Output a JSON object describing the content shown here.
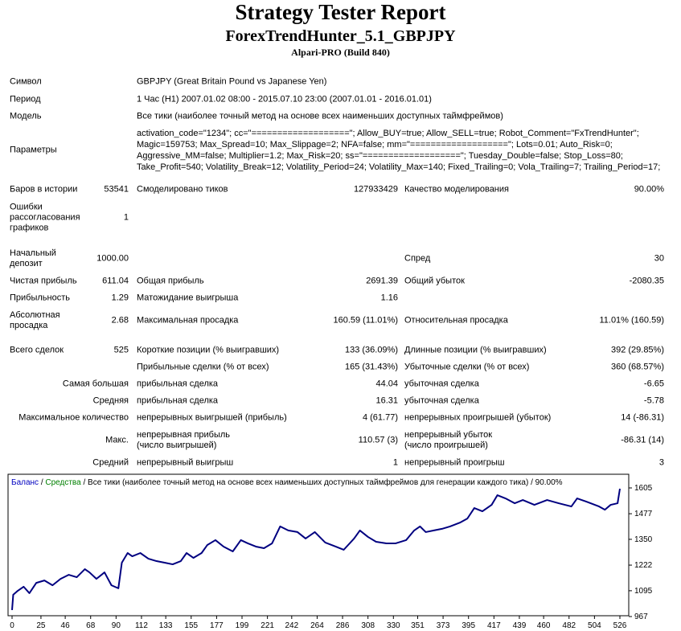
{
  "header": {
    "title": "Strategy Tester Report",
    "subtitle": "ForexTrendHunter_5.1_GBPJPY",
    "build": "Alpari-PRO (Build 840)"
  },
  "table": {
    "rows": [
      [
        "Символ",
        "GBPJPY (Great Britain Pound vs Japanese Yen)"
      ],
      [
        "Период",
        "1 Час (H1) 2007.01.02 08:00 - 2015.07.10 23:00 (2007.01.01 - 2016.01.01)"
      ],
      [
        "Модель",
        "Все тики (наиболее точный метод на основе всех наименьших доступных таймфреймов)"
      ],
      [
        "Параметры",
        "activation_code=\"1234\"; cc=\"===================\"; Allow_BUY=true; Allow_SELL=true; Robot_Comment=\"FxTrendHunter\";",
        "Magic=159753; Max_Spread=10; Max_Slippage=2; NFA=false; mm=\"===================\"; Lots=0.01; Auto_Risk=0;",
        "Aggressive_MM=false; Multiplier=1.2; Max_Risk=20; ss=\"===================\"; Tuesday_Double=false; Stop_Loss=80;",
        "Take_Profit=540; Volatility_Break=12; Volatility_Period=24; Volatility_Max=140; Fixed_Trailing=0; Vola_Trailing=7; Trailing_Period=17;"
      ],
      [
        "Баров в истории",
        "53541",
        "Смоделировано тиков",
        "127933429",
        "Качество моделирования",
        "90.00%"
      ],
      [
        "Ошибки рассогласования графиков",
        "1"
      ],
      [
        "Начальный депозит",
        "1000.00",
        "Спред",
        "30"
      ],
      [
        "Чистая прибыль",
        "611.04",
        "Общая прибыль",
        "2691.39",
        "Общий убыток",
        "-2080.35"
      ],
      [
        "Прибыльность",
        "1.29",
        "Матожидание выигрыша",
        "1.16"
      ],
      [
        "Абсолютная просадка",
        "2.68",
        "Максимальная просадка",
        "160.59 (11.01%)",
        "Относительная просадка",
        "11.01% (160.59)"
      ],
      [
        "Всего сделок",
        "525",
        "Короткие позиции (% выигравших)",
        "133 (36.09%)",
        "Длинные позиции (% выигравших)",
        "392 (29.85%)"
      ],
      [
        "Прибыльные сделки (% от всех)",
        "165 (31.43%)",
        "Убыточные сделки (% от всех)",
        "360 (68.57%)"
      ],
      [
        "Самая большая",
        "прибыльная сделка",
        "44.04",
        "убыточная сделка",
        "-6.65"
      ],
      [
        "Средняя",
        "прибыльная сделка",
        "16.31",
        "убыточная сделка",
        "-5.78"
      ],
      [
        "Максимальное количество",
        "непрерывных выигрышей (прибыль)",
        "4 (61.77)",
        "непрерывных проигрышей (убыток)",
        "14 (-86.31)"
      ],
      [
        "Макс.",
        "непрерывная прибыль (число выигрышей)",
        "110.57 (3)",
        "непрерывный убыток (число проигрышей)",
        "-86.31 (14)"
      ],
      [
        "Средний",
        "непрерывный выигрыш",
        "1",
        "непрерывный проигрыш",
        "3"
      ]
    ]
  },
  "chart_data": {
    "type": "line",
    "title_parts": [
      {
        "text": "Баланс",
        "color": "#0000c0"
      },
      {
        "text": " / ",
        "color": "#000000"
      },
      {
        "text": "Средства",
        "color": "#008000"
      },
      {
        "text": " / Все тики (наиболее точный метод на основе всех наименьших доступных таймфреймов для генерации каждого тика) / 90.00%",
        "color": "#000000"
      }
    ],
    "x": [
      0,
      1,
      5,
      10,
      15,
      21,
      28,
      35,
      42,
      49,
      56,
      63,
      67,
      73,
      80,
      86,
      92,
      95,
      100,
      104,
      111,
      118,
      125,
      132,
      139,
      146,
      151,
      157,
      164,
      169,
      176,
      183,
      191,
      198,
      204,
      211,
      218,
      225,
      232,
      239,
      247,
      254,
      262,
      271,
      280,
      287,
      296,
      301,
      308,
      315,
      324,
      332,
      341,
      348,
      353,
      358,
      365,
      372,
      379,
      388,
      394,
      400,
      407,
      415,
      420,
      427,
      435,
      442,
      452,
      463,
      473,
      484,
      489,
      497,
      508,
      513,
      518,
      524,
      526
    ],
    "series": [
      {
        "color": "#000080",
        "values": [
          999,
          1075,
          1095,
          1115,
          1083,
          1134,
          1146,
          1122,
          1154,
          1174,
          1162,
          1202,
          1186,
          1154,
          1186,
          1122,
          1107,
          1234,
          1282,
          1266,
          1282,
          1254,
          1242,
          1234,
          1226,
          1242,
          1282,
          1258,
          1282,
          1322,
          1346,
          1314,
          1290,
          1346,
          1330,
          1314,
          1306,
          1330,
          1414,
          1394,
          1386,
          1354,
          1386,
          1334,
          1314,
          1298,
          1354,
          1394,
          1362,
          1338,
          1330,
          1330,
          1346,
          1394,
          1414,
          1386,
          1394,
          1402,
          1414,
          1434,
          1453,
          1505,
          1489,
          1521,
          1569,
          1553,
          1529,
          1545,
          1521,
          1545,
          1529,
          1513,
          1553,
          1537,
          1513,
          1497,
          1521,
          1529,
          1601
        ]
      }
    ],
    "xlim": [
      0,
      526
    ],
    "xticks": [
      0,
      25,
      46,
      68,
      90,
      112,
      133,
      155,
      177,
      199,
      221,
      242,
      264,
      286,
      308,
      330,
      351,
      373,
      395,
      417,
      439,
      460,
      482,
      504,
      526
    ],
    "ylim": [
      967,
      1605
    ],
    "yticks": [
      967,
      1095,
      1222,
      1350,
      1477,
      1605
    ]
  }
}
